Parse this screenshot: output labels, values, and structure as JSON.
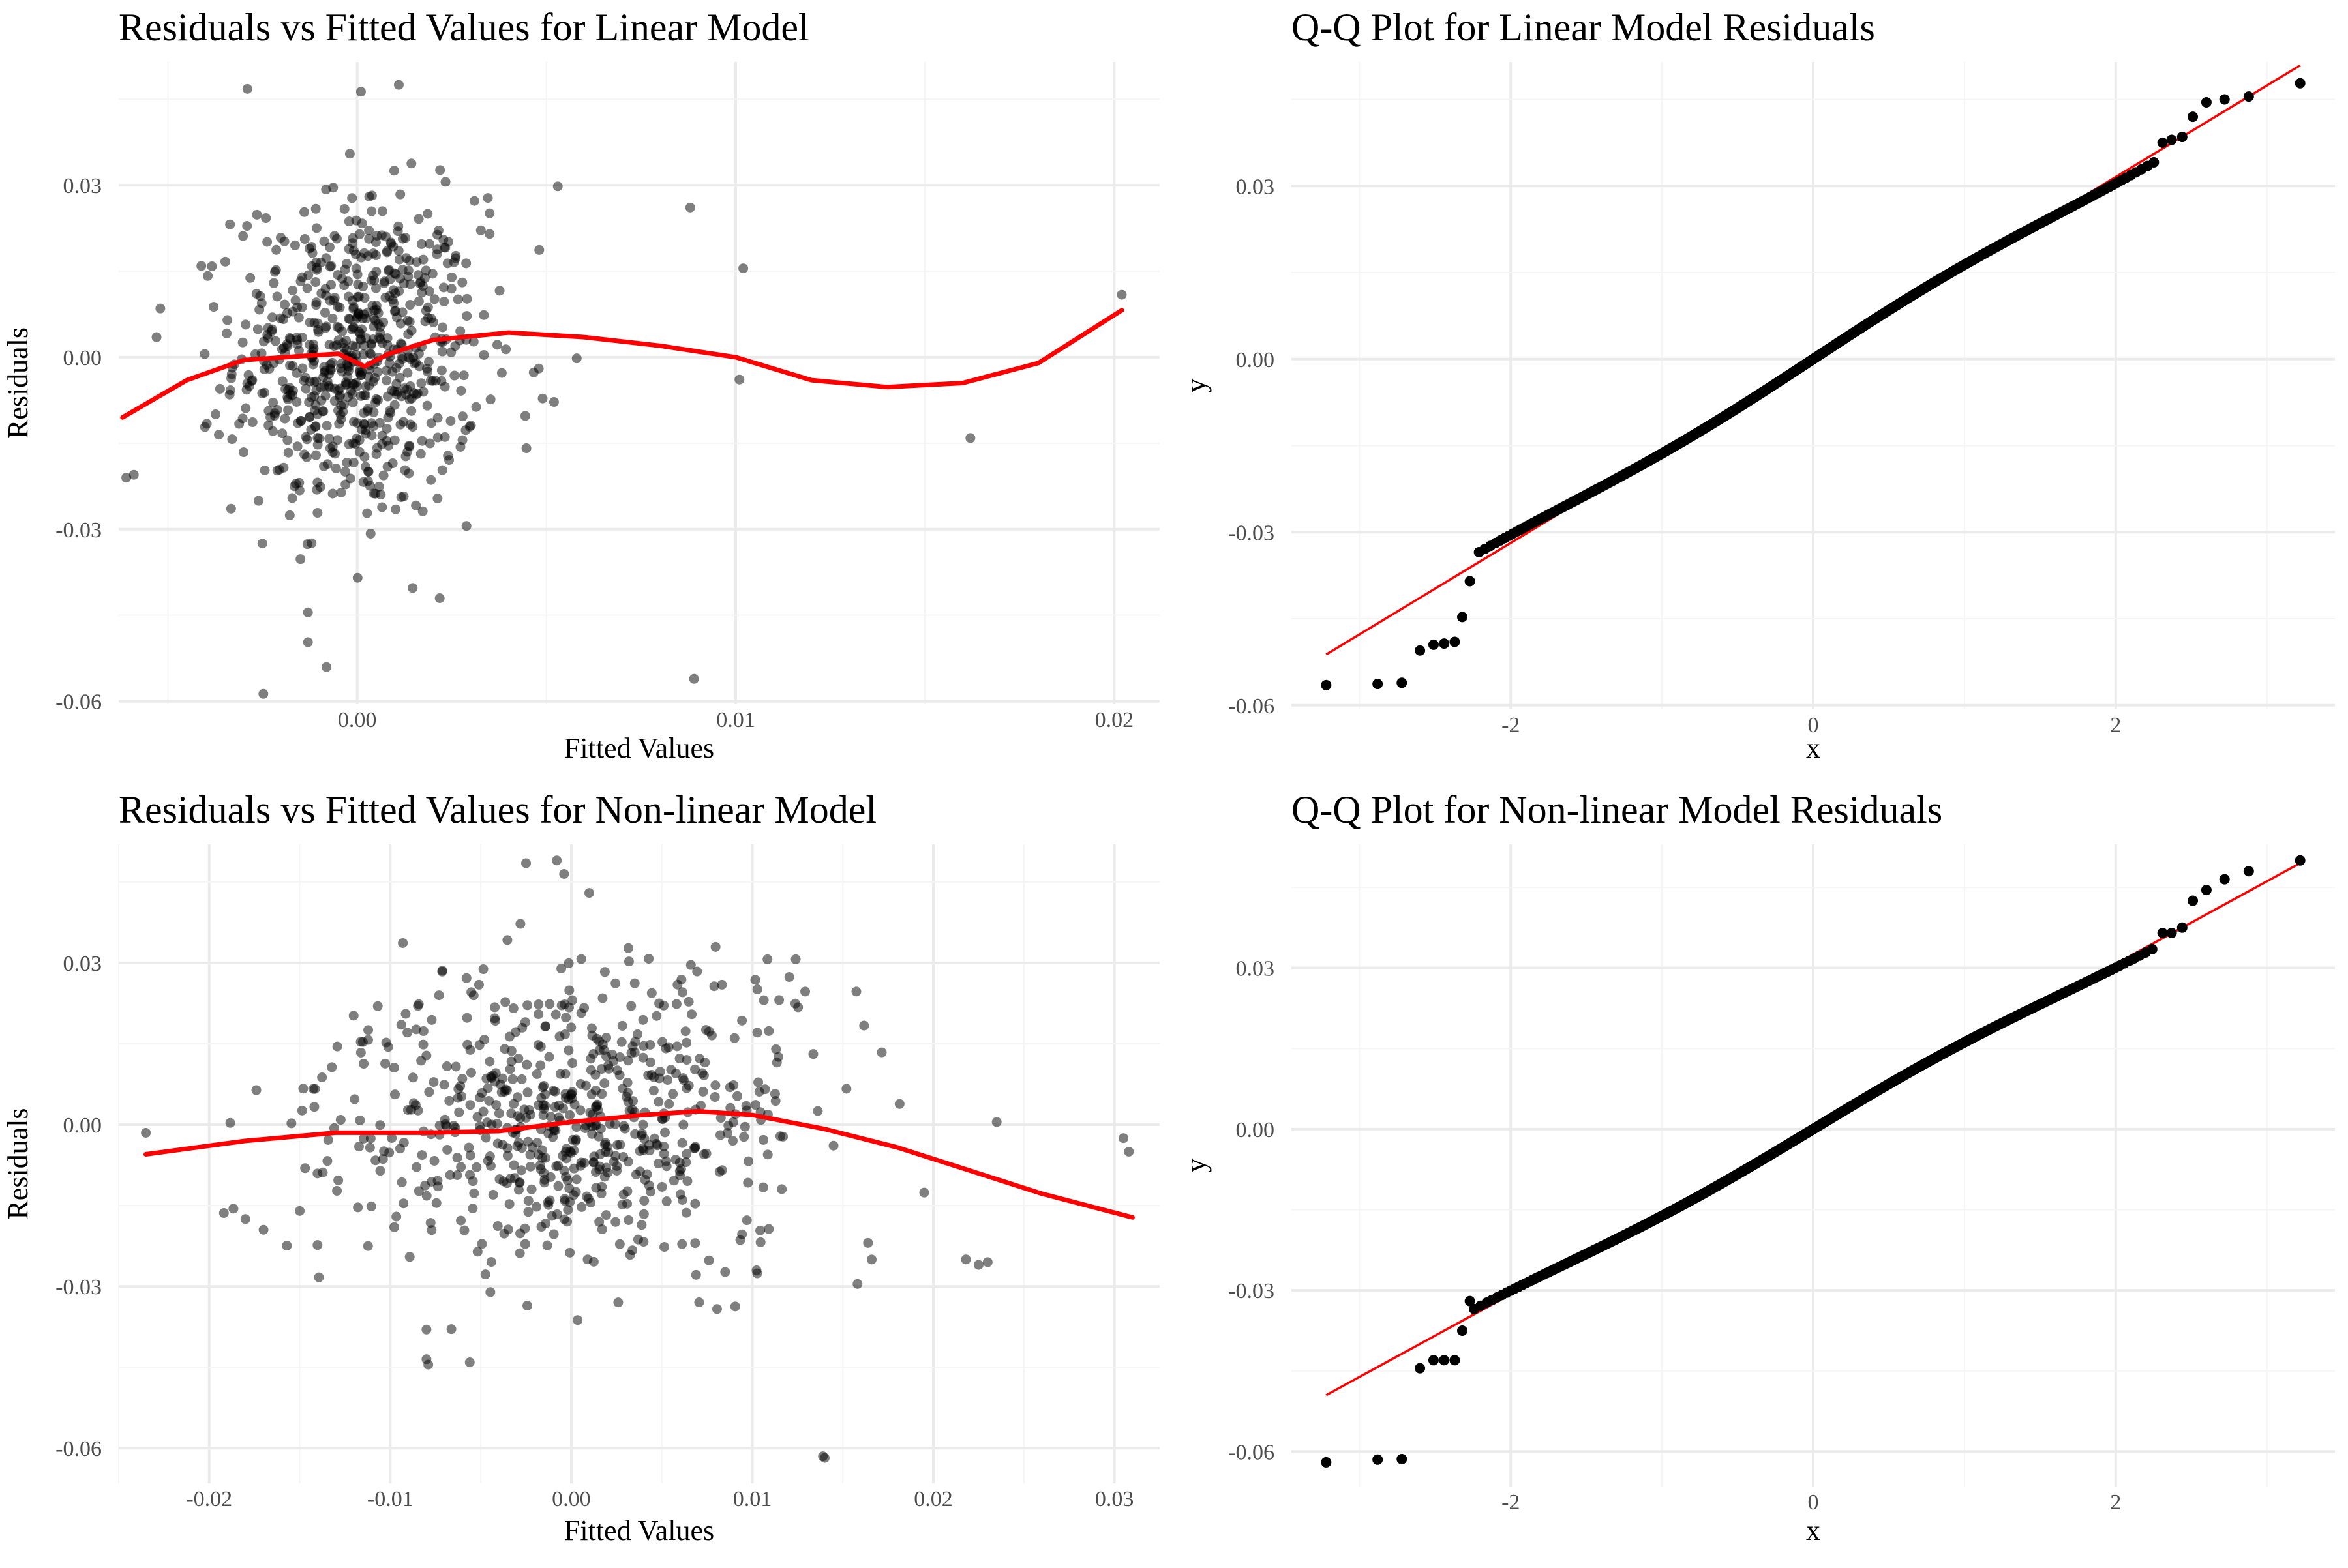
{
  "chart_data": [
    {
      "type": "scatter",
      "title": "Residuals vs Fitted Values for Linear Model",
      "xlabel": "Fitted Values",
      "ylabel": "Residuals",
      "xlim": [
        -0.0063,
        0.0212
      ],
      "ylim": [
        -0.0605,
        0.0515
      ],
      "xticks": [
        0.0,
        0.01,
        0.02
      ],
      "xtick_labels": [
        "0.00",
        "0.01",
        "0.02"
      ],
      "yticks": [
        -0.06,
        -0.03,
        0.0,
        0.03
      ],
      "ytick_labels": [
        "-0.06",
        "-0.03",
        "0.00",
        "0.03"
      ],
      "grid": true,
      "point_color": "#000000",
      "smooth_color": "#ff0000",
      "point_cloud": {
        "n": 700,
        "x_center": 0.0,
        "x_sd": 0.0016,
        "y_sd": 0.014
      },
      "points": [
        {
          "x": 0.0089,
          "y": -0.0561
        },
        {
          "x": 0.0088,
          "y": 0.0261
        },
        {
          "x": 0.0102,
          "y": 0.0155
        },
        {
          "x": 0.0101,
          "y": -0.0039
        },
        {
          "x": 0.0162,
          "y": -0.0141
        },
        {
          "x": 0.0202,
          "y": 0.0109
        },
        {
          "x": 0.0053,
          "y": 0.0298
        },
        {
          "x": 0.0058,
          "y": -0.0002
        },
        {
          "x": 0.0049,
          "y": -0.0072
        },
        {
          "x": 0.0052,
          "y": -0.0078
        },
        {
          "x": 0.0035,
          "y": 0.0251
        },
        {
          "x": 0.0035,
          "y": 0.0215
        },
        {
          "x": -0.0059,
          "y": -0.0205
        },
        {
          "x": -0.0061,
          "y": -0.021
        },
        {
          "x": -0.0052,
          "y": 0.0085
        },
        {
          "x": -0.0053,
          "y": 0.0035
        },
        {
          "x": -0.0029,
          "y": 0.0468
        },
        {
          "x": 0.0001,
          "y": 0.0463
        },
        {
          "x": 0.0011,
          "y": 0.0475
        },
        {
          "x": -0.0013,
          "y": -0.0497
        },
        {
          "x": -0.0013,
          "y": -0.0445
        }
      ],
      "smooth": [
        {
          "x": -0.0062,
          "y": -0.0105
        },
        {
          "x": -0.0045,
          "y": -0.004
        },
        {
          "x": -0.003,
          "y": -0.0005
        },
        {
          "x": -0.0015,
          "y": 0.0002
        },
        {
          "x": -0.0005,
          "y": 0.0006
        },
        {
          "x": 0.0002,
          "y": -0.0016
        },
        {
          "x": 0.0008,
          "y": 0.0005
        },
        {
          "x": 0.002,
          "y": 0.003
        },
        {
          "x": 0.004,
          "y": 0.0043
        },
        {
          "x": 0.006,
          "y": 0.0035
        },
        {
          "x": 0.008,
          "y": 0.002
        },
        {
          "x": 0.01,
          "y": 0.0
        },
        {
          "x": 0.012,
          "y": -0.004
        },
        {
          "x": 0.014,
          "y": -0.0052
        },
        {
          "x": 0.016,
          "y": -0.0045
        },
        {
          "x": 0.018,
          "y": -0.001
        },
        {
          "x": 0.0202,
          "y": 0.0082
        }
      ]
    },
    {
      "type": "scatter",
      "title": "Q-Q Plot for Linear Model Residuals",
      "xlabel": "x",
      "ylabel": "y",
      "xlim": [
        -3.45,
        3.45
      ],
      "ylim": [
        -0.0607,
        0.0515
      ],
      "xticks": [
        -2,
        0,
        2
      ],
      "xtick_labels": [
        "-2",
        "0",
        "2"
      ],
      "yticks": [
        -0.06,
        -0.03,
        0.0,
        0.03
      ],
      "ytick_labels": [
        "-0.06",
        "-0.03",
        "0.00",
        "0.03"
      ],
      "grid": true,
      "point_color": "#000000",
      "line_color": "#ff0000",
      "n": 700,
      "slope": 0.0155,
      "intercept": 0.0,
      "reference_line": [
        {
          "x": -3.22,
          "y": -0.0512
        },
        {
          "x": 3.22,
          "y": 0.0509
        }
      ],
      "tail_points": [
        {
          "x": -3.22,
          "y": -0.0565
        },
        {
          "x": -2.88,
          "y": -0.0563
        },
        {
          "x": -2.72,
          "y": -0.0561
        },
        {
          "x": -2.6,
          "y": -0.0505
        },
        {
          "x": -2.51,
          "y": -0.0495
        },
        {
          "x": -2.44,
          "y": -0.0493
        },
        {
          "x": -2.37,
          "y": -0.049
        },
        {
          "x": -2.32,
          "y": -0.0447
        },
        {
          "x": -2.27,
          "y": -0.0385
        },
        {
          "x": 2.31,
          "y": 0.0375
        },
        {
          "x": 2.37,
          "y": 0.038
        },
        {
          "x": 2.44,
          "y": 0.0385
        },
        {
          "x": 2.51,
          "y": 0.042
        },
        {
          "x": 2.6,
          "y": 0.0445
        },
        {
          "x": 2.72,
          "y": 0.045
        },
        {
          "x": 2.88,
          "y": 0.0455
        },
        {
          "x": 3.22,
          "y": 0.0478
        }
      ]
    },
    {
      "type": "scatter",
      "title": "Residuals vs Fitted Values for Non-linear Model",
      "xlabel": "Fitted Values",
      "ylabel": "Residuals",
      "xlim": [
        -0.025,
        0.0325
      ],
      "ylim": [
        -0.0665,
        0.052
      ],
      "xticks": [
        -0.02,
        -0.01,
        0.0,
        0.01,
        0.02,
        0.03
      ],
      "xtick_labels": [
        "-0.02",
        "-0.01",
        "0.00",
        "0.01",
        "0.02",
        "0.03"
      ],
      "yticks": [
        -0.06,
        -0.03,
        0.0,
        0.03
      ],
      "ytick_labels": [
        "-0.06",
        "-0.03",
        "0.00",
        "0.03"
      ],
      "grid": true,
      "point_color": "#000000",
      "smooth_color": "#ff0000",
      "point_cloud": {
        "n": 680,
        "x_center": 0.0,
        "x_sd": 0.0065,
        "y_sd": 0.0145
      },
      "points": [
        {
          "x": -0.0235,
          "y": -0.0015
        },
        {
          "x": 0.0305,
          "y": -0.0025
        },
        {
          "x": 0.0308,
          "y": -0.005
        },
        {
          "x": 0.0235,
          "y": 0.0005
        },
        {
          "x": 0.014,
          "y": -0.0618
        },
        {
          "x": 0.0139,
          "y": -0.0615
        },
        {
          "x": -0.0079,
          "y": -0.0445
        },
        {
          "x": -0.008,
          "y": -0.0435
        },
        {
          "x": -0.008,
          "y": -0.038
        },
        {
          "x": -0.0025,
          "y": 0.0485
        },
        {
          "x": -0.0008,
          "y": 0.049
        },
        {
          "x": -0.0004,
          "y": 0.0465
        },
        {
          "x": 0.0225,
          "y": -0.026
        },
        {
          "x": 0.0218,
          "y": -0.025
        },
        {
          "x": 0.023,
          "y": -0.0255
        },
        {
          "x": -0.018,
          "y": -0.0175
        },
        {
          "x": -0.017,
          "y": -0.0195
        },
        {
          "x": -0.015,
          "y": -0.016
        }
      ],
      "smooth": [
        {
          "x": -0.0235,
          "y": -0.0055
        },
        {
          "x": -0.018,
          "y": -0.003
        },
        {
          "x": -0.013,
          "y": -0.0015
        },
        {
          "x": -0.008,
          "y": -0.0015
        },
        {
          "x": -0.004,
          "y": -0.0012
        },
        {
          "x": 0.0,
          "y": 0.0005
        },
        {
          "x": 0.004,
          "y": 0.0018
        },
        {
          "x": 0.007,
          "y": 0.0025
        },
        {
          "x": 0.01,
          "y": 0.0018
        },
        {
          "x": 0.014,
          "y": -0.0008
        },
        {
          "x": 0.018,
          "y": -0.0042
        },
        {
          "x": 0.022,
          "y": -0.0085
        },
        {
          "x": 0.026,
          "y": -0.0128
        },
        {
          "x": 0.031,
          "y": -0.0172
        }
      ]
    },
    {
      "type": "scatter",
      "title": "Q-Q Plot for Non-linear Model Residuals",
      "xlabel": "x",
      "ylabel": "y",
      "xlim": [
        -3.45,
        3.45
      ],
      "ylim": [
        -0.0665,
        0.053
      ],
      "xticks": [
        -2,
        0,
        2
      ],
      "xtick_labels": [
        "-2",
        "0",
        "2"
      ],
      "yticks": [
        -0.06,
        -0.03,
        0.0,
        0.03
      ],
      "ytick_labels": [
        "-0.06",
        "-0.03",
        "0.00",
        "0.03"
      ],
      "grid": true,
      "point_color": "#000000",
      "line_color": "#ff0000",
      "n": 680,
      "slope": 0.0153,
      "intercept": 0.0,
      "reference_line": [
        {
          "x": -3.22,
          "y": -0.0495
        },
        {
          "x": 3.22,
          "y": 0.0495
        }
      ],
      "tail_points": [
        {
          "x": -3.22,
          "y": -0.062
        },
        {
          "x": -2.88,
          "y": -0.0615
        },
        {
          "x": -2.72,
          "y": -0.0614
        },
        {
          "x": -2.6,
          "y": -0.0445
        },
        {
          "x": -2.51,
          "y": -0.043
        },
        {
          "x": -2.44,
          "y": -0.043
        },
        {
          "x": -2.37,
          "y": -0.043
        },
        {
          "x": -2.32,
          "y": -0.0375
        },
        {
          "x": -2.27,
          "y": -0.032
        },
        {
          "x": 2.31,
          "y": 0.0365
        },
        {
          "x": 2.37,
          "y": 0.0365
        },
        {
          "x": 2.44,
          "y": 0.0375
        },
        {
          "x": 2.51,
          "y": 0.0425
        },
        {
          "x": 2.6,
          "y": 0.0445
        },
        {
          "x": 2.72,
          "y": 0.0465
        },
        {
          "x": 2.88,
          "y": 0.048
        },
        {
          "x": 3.22,
          "y": 0.05
        }
      ]
    }
  ]
}
